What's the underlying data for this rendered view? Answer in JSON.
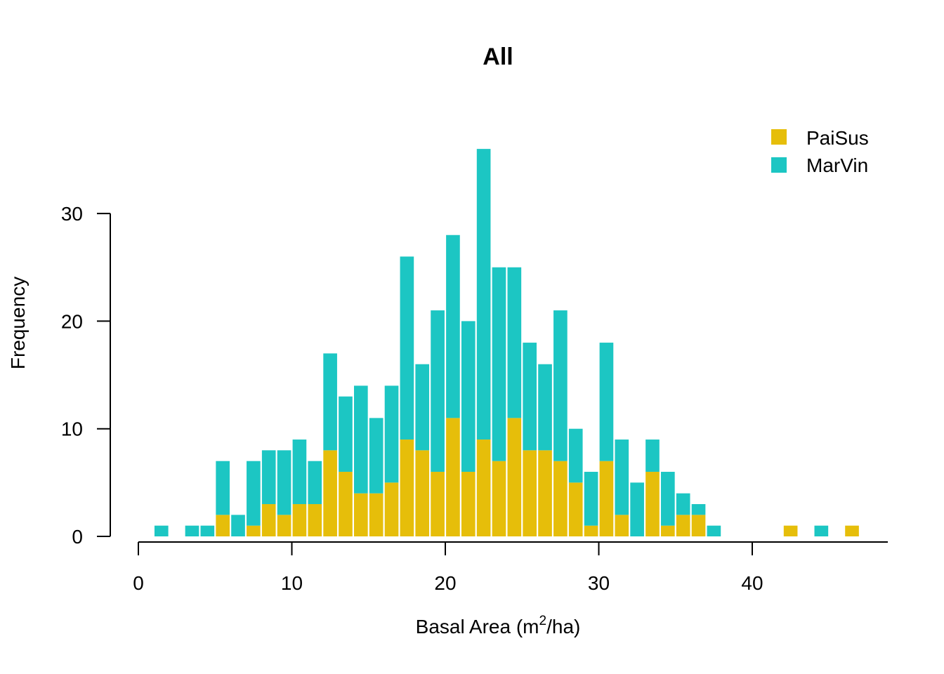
{
  "chart_data": {
    "type": "bar",
    "stacked": true,
    "title": "All",
    "xlabel": {
      "prefix": "Basal Area (m",
      "sup": "2",
      "suffix": "/ha)"
    },
    "ylabel": "Frequency",
    "xlim": [
      0,
      48
    ],
    "ylim": [
      0,
      36
    ],
    "xticks": [
      0,
      10,
      20,
      30,
      40
    ],
    "yticks": [
      0,
      10,
      20,
      30
    ],
    "bin_width": 1,
    "x": [
      1.5,
      2.5,
      3.5,
      4.5,
      5.5,
      6.5,
      7.5,
      8.5,
      9.5,
      10.5,
      11.5,
      12.5,
      13.5,
      14.5,
      15.5,
      16.5,
      17.5,
      18.5,
      19.5,
      20.5,
      21.5,
      22.5,
      23.5,
      24.5,
      25.5,
      26.5,
      27.5,
      28.5,
      29.5,
      30.5,
      31.5,
      32.5,
      33.5,
      34.5,
      35.5,
      36.5,
      37.5,
      38.5,
      39.5,
      40.5,
      41.5,
      42.5,
      43.5,
      44.5,
      45.5,
      46.5
    ],
    "series": [
      {
        "name": "PaiSus",
        "color": "#E6BE0A",
        "values": [
          0,
          0,
          0,
          0,
          2,
          0,
          1,
          3,
          2,
          3,
          3,
          8,
          6,
          4,
          4,
          5,
          9,
          8,
          6,
          11,
          6,
          9,
          7,
          11,
          8,
          8,
          7,
          5,
          1,
          7,
          2,
          0,
          6,
          1,
          2,
          2,
          0,
          0,
          0,
          0,
          0,
          1,
          0,
          0,
          0,
          1
        ]
      },
      {
        "name": "MarVin",
        "color": "#1CC6C3",
        "values": [
          1,
          0,
          1,
          1,
          5,
          2,
          6,
          5,
          6,
          6,
          4,
          9,
          7,
          10,
          7,
          9,
          17,
          8,
          15,
          17,
          14,
          27,
          18,
          14,
          10,
          8,
          14,
          5,
          5,
          11,
          7,
          5,
          3,
          5,
          2,
          1,
          1,
          0,
          0,
          0,
          0,
          0,
          0,
          1,
          0,
          0
        ]
      }
    ],
    "legend": {
      "position": "top-right",
      "entries": [
        "PaiSus",
        "MarVin"
      ]
    }
  }
}
